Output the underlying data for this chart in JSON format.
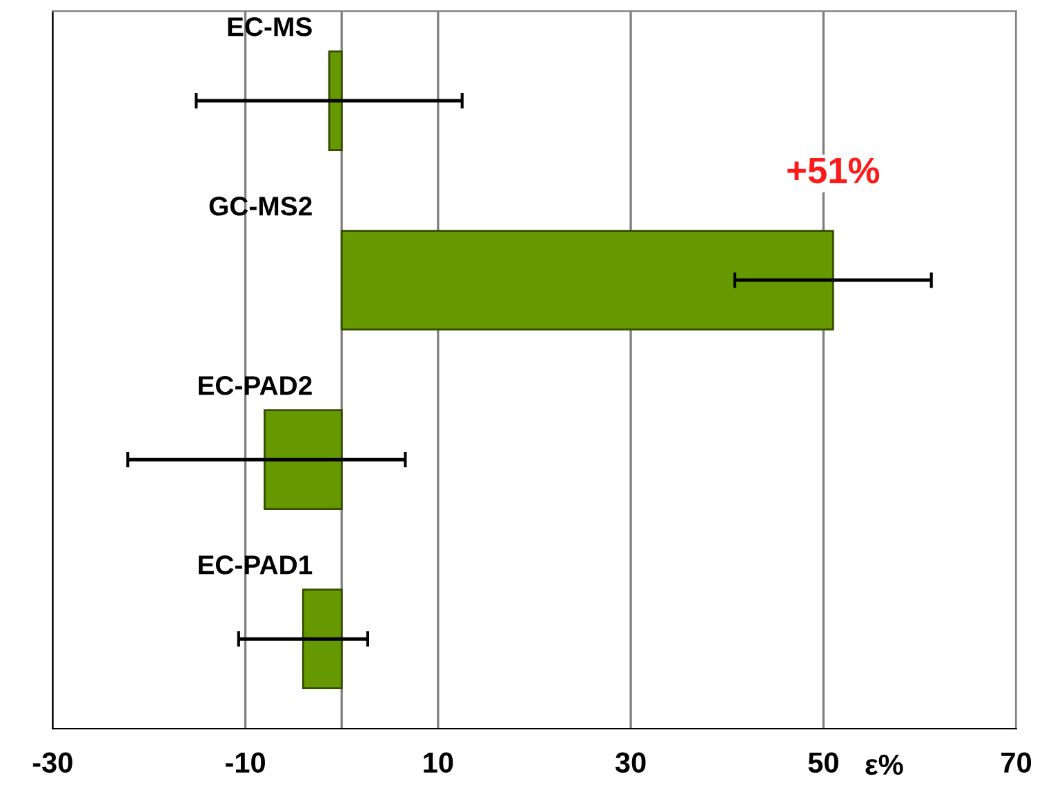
{
  "chart_data": {
    "type": "bar",
    "orientation": "horizontal",
    "categories": [
      "EC-MS",
      "GC-MS2",
      "EC-PAD2",
      "EC-PAD1"
    ],
    "values": [
      -1.3,
      51,
      -8,
      -4
    ],
    "errors": [
      13.8,
      10.2,
      [
        -22.2,
        6.6
      ],
      6.7
    ],
    "color": "#669900",
    "xlabel": "ε%",
    "xlim": [
      -30,
      70
    ],
    "xticks": [
      -30,
      -10,
      {
        "value": 0,
        "label": null
      },
      10,
      30,
      50,
      70
    ],
    "grid": "x",
    "annotations": [
      {
        "text": "+51%",
        "x": 51,
        "y": "GC-MS2"
      }
    ]
  }
}
